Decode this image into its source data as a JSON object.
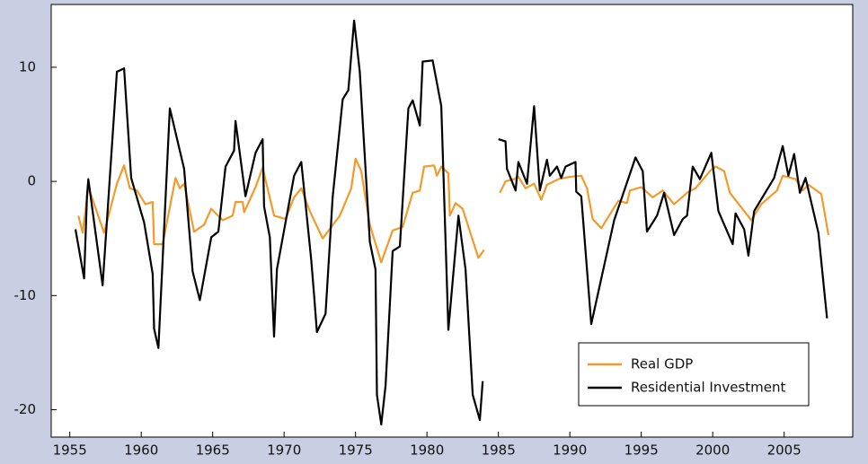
{
  "chart_data": {
    "type": "line",
    "xlim": [
      1953.7,
      2009.8
    ],
    "ylim": [
      -22.4,
      15.5
    ],
    "xticks": [
      1955,
      1960,
      1965,
      1970,
      1975,
      1980,
      1985,
      1990,
      1995,
      2000,
      2005
    ],
    "yticks": [
      -20,
      -10,
      0,
      10
    ],
    "legend": "lower right",
    "series": [
      {
        "name": "Real GDP",
        "color": "#f39a2b",
        "x": [
          1955.6,
          1955.9,
          1956.3,
          1957.4,
          1958.3,
          1958.8,
          1959.2,
          1959.7,
          1960.3,
          1960.8,
          1960.9,
          1961.5,
          1962.4,
          1962.7,
          1963.0,
          1963.7,
          1964.4,
          1964.9,
          1965.7,
          1966.4,
          1966.6,
          1967.1,
          1967.2,
          1968.0,
          1968.5,
          1969.3,
          1970.1,
          1970.7,
          1971.2,
          1971.8,
          1972.7,
          1973.9,
          1974.7,
          1975.0,
          1975.4,
          1976.0,
          1976.8,
          1977.6,
          1978.3,
          1979.0,
          1979.5,
          1979.8,
          1980.5,
          1980.7,
          1981.0,
          1981.5,
          1981.6,
          1982.0,
          1982.5,
          1983.6,
          1984.0,
          null,
          1985.1,
          1985.5,
          1986.1,
          1986.4,
          1986.9,
          1987.5,
          1988.0,
          1988.4,
          1989.2,
          1990.0,
          1990.8,
          1991.2,
          1991.6,
          1992.2,
          1993.4,
          1994.0,
          1994.2,
          1995.0,
          1995.8,
          1996.5,
          1997.3,
          1998.3,
          1998.8,
          1999.8,
          2000.2,
          2000.8,
          2001.2,
          2002.7,
          2003.4,
          2004.5,
          2004.9,
          2005.8,
          2006.3,
          2006.7,
          2007.6,
          2008.1
        ],
        "values": [
          -3.0,
          -4.5,
          -0.5,
          -4.5,
          -0.2,
          1.4,
          -0.6,
          -0.8,
          -2.0,
          -1.8,
          -5.5,
          -5.5,
          0.3,
          -0.6,
          -0.2,
          -4.4,
          -3.8,
          -2.4,
          -3.4,
          -3.0,
          -1.8,
          -1.8,
          -2.7,
          -0.5,
          1.2,
          -3.0,
          -3.3,
          -1.4,
          -0.6,
          -2.6,
          -5.0,
          -3.0,
          -0.6,
          2.0,
          0.9,
          -3.8,
          -7.1,
          -4.3,
          -4.0,
          -1.0,
          -0.8,
          1.3,
          1.4,
          0.5,
          1.3,
          0.7,
          -3.0,
          -1.9,
          -2.4,
          -6.7,
          -6.0,
          null,
          -1.0,
          0.0,
          0.2,
          0.4,
          -0.6,
          -0.2,
          -1.6,
          -0.3,
          0.2,
          0.4,
          0.5,
          -0.6,
          -3.3,
          -4.1,
          -1.7,
          -1.9,
          -0.8,
          -0.5,
          -1.4,
          -0.8,
          -2.0,
          -0.9,
          -0.6,
          0.9,
          1.3,
          0.9,
          -1.0,
          -3.4,
          -2.0,
          -0.8,
          0.5,
          0.2,
          -0.8,
          -0.3,
          -1.1,
          -4.7
        ]
      },
      {
        "name": "Residential Investment",
        "color": "#000000",
        "x": [
          1955.4,
          1956.0,
          1956.2,
          1956.3,
          1957.3,
          1958.3,
          1958.8,
          1959.3,
          1960.2,
          1960.8,
          1960.9,
          1961.2,
          1962.0,
          1963.0,
          1963.6,
          1964.1,
          1964.9,
          1965.4,
          1965.9,
          1966.5,
          1966.6,
          1967.3,
          1968.0,
          1968.5,
          1968.6,
          1969.0,
          1969.3,
          1969.5,
          1970.7,
          1971.2,
          1971.9,
          1972.1,
          1972.3,
          1972.9,
          1973.4,
          1974.1,
          1974.5,
          1974.9,
          1975.3,
          1976.0,
          1976.4,
          1976.5,
          1976.8,
          1977.1,
          1977.6,
          1978.1,
          1978.7,
          1979.0,
          1979.5,
          1979.7,
          1980.4,
          1981.0,
          1981.5,
          1982.2,
          1982.7,
          1983.2,
          1983.7,
          1983.9,
          null,
          1985.0,
          1985.5,
          1985.6,
          1986.2,
          1986.4,
          1987.0,
          1987.5,
          1987.9,
          1988.4,
          1988.6,
          1989.1,
          1989.4,
          1989.7,
          1990.4,
          1990.45,
          1990.8,
          1991.5,
          1993.1,
          1994.6,
          1995.1,
          1995.4,
          1996.1,
          1996.6,
          1997.3,
          1997.9,
          1998.2,
          1998.6,
          1999.1,
          1999.9,
          2000.4,
          2001.4,
          2001.6,
          2002.2,
          2002.5,
          2002.9,
          2004.3,
          2004.9,
          2005.3,
          2005.7,
          2006.1,
          2006.5,
          2007.4,
          2008.0
        ],
        "values": [
          -4.2,
          -8.5,
          -1.3,
          0.2,
          -9.1,
          9.6,
          9.9,
          0.3,
          -3.6,
          -8.1,
          -12.9,
          -14.6,
          6.4,
          1.1,
          -7.9,
          -10.4,
          -4.9,
          -4.4,
          1.3,
          2.7,
          5.3,
          -1.3,
          2.5,
          3.7,
          -2.2,
          -4.9,
          -13.6,
          -7.7,
          0.5,
          1.7,
          -6.9,
          -10.0,
          -13.2,
          -11.6,
          -1.4,
          7.2,
          8.0,
          14.1,
          9.6,
          -5.3,
          -7.7,
          -18.7,
          -21.3,
          -17.9,
          -6.1,
          -5.7,
          6.4,
          7.1,
          4.9,
          10.5,
          10.6,
          6.6,
          -13.0,
          -3.0,
          -7.7,
          -18.7,
          -20.9,
          -17.5,
          null,
          3.7,
          3.5,
          1.1,
          -0.8,
          1.7,
          -0.2,
          6.6,
          -0.8,
          1.9,
          0.5,
          1.3,
          0.3,
          1.3,
          1.7,
          -0.9,
          -1.3,
          -12.5,
          -3.4,
          2.1,
          0.9,
          -4.4,
          -3.0,
          -1.0,
          -4.7,
          -3.3,
          -3.0,
          1.3,
          0.2,
          2.5,
          -2.6,
          -5.5,
          -2.8,
          -4.2,
          -6.5,
          -2.6,
          0.3,
          3.1,
          0.5,
          2.4,
          -1.0,
          0.3,
          -4.5,
          -12.0
        ]
      }
    ]
  }
}
